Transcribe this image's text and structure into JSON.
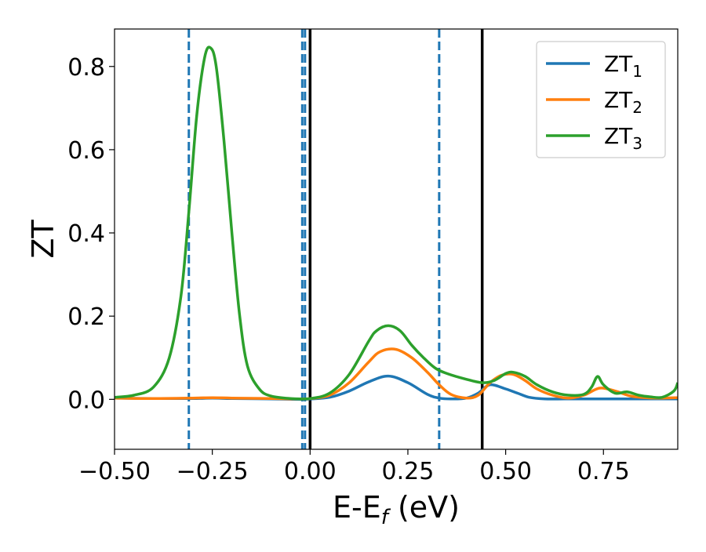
{
  "chart_data": {
    "type": "line",
    "title": "",
    "xlabel": "E-E",
    "xlabel_subscript": "f",
    "xlabel_unit": " (eV)",
    "ylabel": "ZT",
    "xlim": [
      -0.5,
      0.94
    ],
    "ylim": [
      -0.12,
      0.89
    ],
    "xticks": [
      -0.5,
      -0.25,
      0.0,
      0.25,
      0.5,
      0.75
    ],
    "xtick_labels": [
      "−0.50",
      "−0.25",
      "0.00",
      "0.25",
      "0.50",
      "0.75"
    ],
    "yticks": [
      0.0,
      0.2,
      0.4,
      0.6,
      0.8
    ],
    "ytick_labels": [
      "0.0",
      "0.2",
      "0.4",
      "0.6",
      "0.8"
    ],
    "grid": false,
    "legend_position": "top-right",
    "series": [
      {
        "name": "ZT",
        "name_subscript": "1",
        "color": "#1f77b4",
        "x": [
          -0.5,
          -0.4,
          -0.3,
          -0.25,
          -0.2,
          -0.1,
          -0.03,
          0.0,
          0.05,
          0.1,
          0.15,
          0.2,
          0.25,
          0.3,
          0.33,
          0.36,
          0.4,
          0.43,
          0.46,
          0.5,
          0.53,
          0.56,
          0.6,
          0.65,
          0.7,
          0.75,
          0.8,
          0.85,
          0.9,
          0.94
        ],
        "y": [
          0.003,
          0.002,
          0.002,
          0.003,
          0.002,
          0.001,
          0.0,
          0.001,
          0.005,
          0.02,
          0.042,
          0.056,
          0.04,
          0.012,
          0.003,
          0.001,
          0.003,
          0.015,
          0.035,
          0.025,
          0.015,
          0.005,
          0.001,
          0.001,
          0.001,
          0.001,
          0.001,
          0.001,
          0.001,
          0.001
        ]
      },
      {
        "name": "ZT",
        "name_subscript": "2",
        "color": "#ff7f0e",
        "x": [
          -0.5,
          -0.4,
          -0.3,
          -0.25,
          -0.2,
          -0.1,
          -0.03,
          0.0,
          0.05,
          0.1,
          0.15,
          0.18,
          0.22,
          0.26,
          0.3,
          0.33,
          0.36,
          0.4,
          0.43,
          0.46,
          0.49,
          0.52,
          0.55,
          0.58,
          0.62,
          0.66,
          0.7,
          0.74,
          0.78,
          0.82,
          0.86,
          0.9,
          0.94
        ],
        "y": [
          0.003,
          0.002,
          0.003,
          0.004,
          0.003,
          0.002,
          0.001,
          0.002,
          0.01,
          0.04,
          0.09,
          0.115,
          0.12,
          0.1,
          0.065,
          0.035,
          0.012,
          0.003,
          0.01,
          0.04,
          0.058,
          0.06,
          0.045,
          0.025,
          0.01,
          0.003,
          0.01,
          0.027,
          0.02,
          0.008,
          0.004,
          0.003,
          0.004
        ]
      },
      {
        "name": "ZT",
        "name_subscript": "3",
        "color": "#2ca02c",
        "x": [
          -0.5,
          -0.45,
          -0.4,
          -0.36,
          -0.33,
          -0.31,
          -0.29,
          -0.27,
          -0.255,
          -0.24,
          -0.22,
          -0.2,
          -0.18,
          -0.16,
          -0.13,
          -0.1,
          -0.05,
          0.0,
          0.05,
          0.1,
          0.15,
          0.17,
          0.2,
          0.23,
          0.26,
          0.29,
          0.32,
          0.35,
          0.4,
          0.44,
          0.47,
          0.5,
          0.52,
          0.55,
          0.58,
          0.62,
          0.66,
          0.7,
          0.72,
          0.735,
          0.75,
          0.78,
          0.81,
          0.84,
          0.87,
          0.9,
          0.93,
          0.94
        ],
        "y": [
          0.005,
          0.01,
          0.03,
          0.1,
          0.25,
          0.45,
          0.68,
          0.82,
          0.845,
          0.8,
          0.62,
          0.4,
          0.2,
          0.08,
          0.025,
          0.008,
          0.002,
          0.002,
          0.015,
          0.06,
          0.14,
          0.165,
          0.177,
          0.165,
          0.13,
          0.1,
          0.075,
          0.062,
          0.048,
          0.04,
          0.045,
          0.062,
          0.065,
          0.055,
          0.035,
          0.018,
          0.01,
          0.012,
          0.03,
          0.055,
          0.035,
          0.015,
          0.018,
          0.01,
          0.006,
          0.005,
          0.02,
          0.04
        ]
      }
    ],
    "vertical_lines": [
      {
        "x": -0.31,
        "style": "dashed",
        "color": "#1f77b4"
      },
      {
        "x": -0.02,
        "style": "dashed",
        "color": "#1f77b4"
      },
      {
        "x": -0.013,
        "style": "dashed",
        "color": "#1f77b4"
      },
      {
        "x": 0.0,
        "style": "solid",
        "color": "#000000"
      },
      {
        "x": 0.33,
        "style": "dashed",
        "color": "#1f77b4"
      },
      {
        "x": 0.44,
        "style": "solid",
        "color": "#000000"
      }
    ]
  }
}
